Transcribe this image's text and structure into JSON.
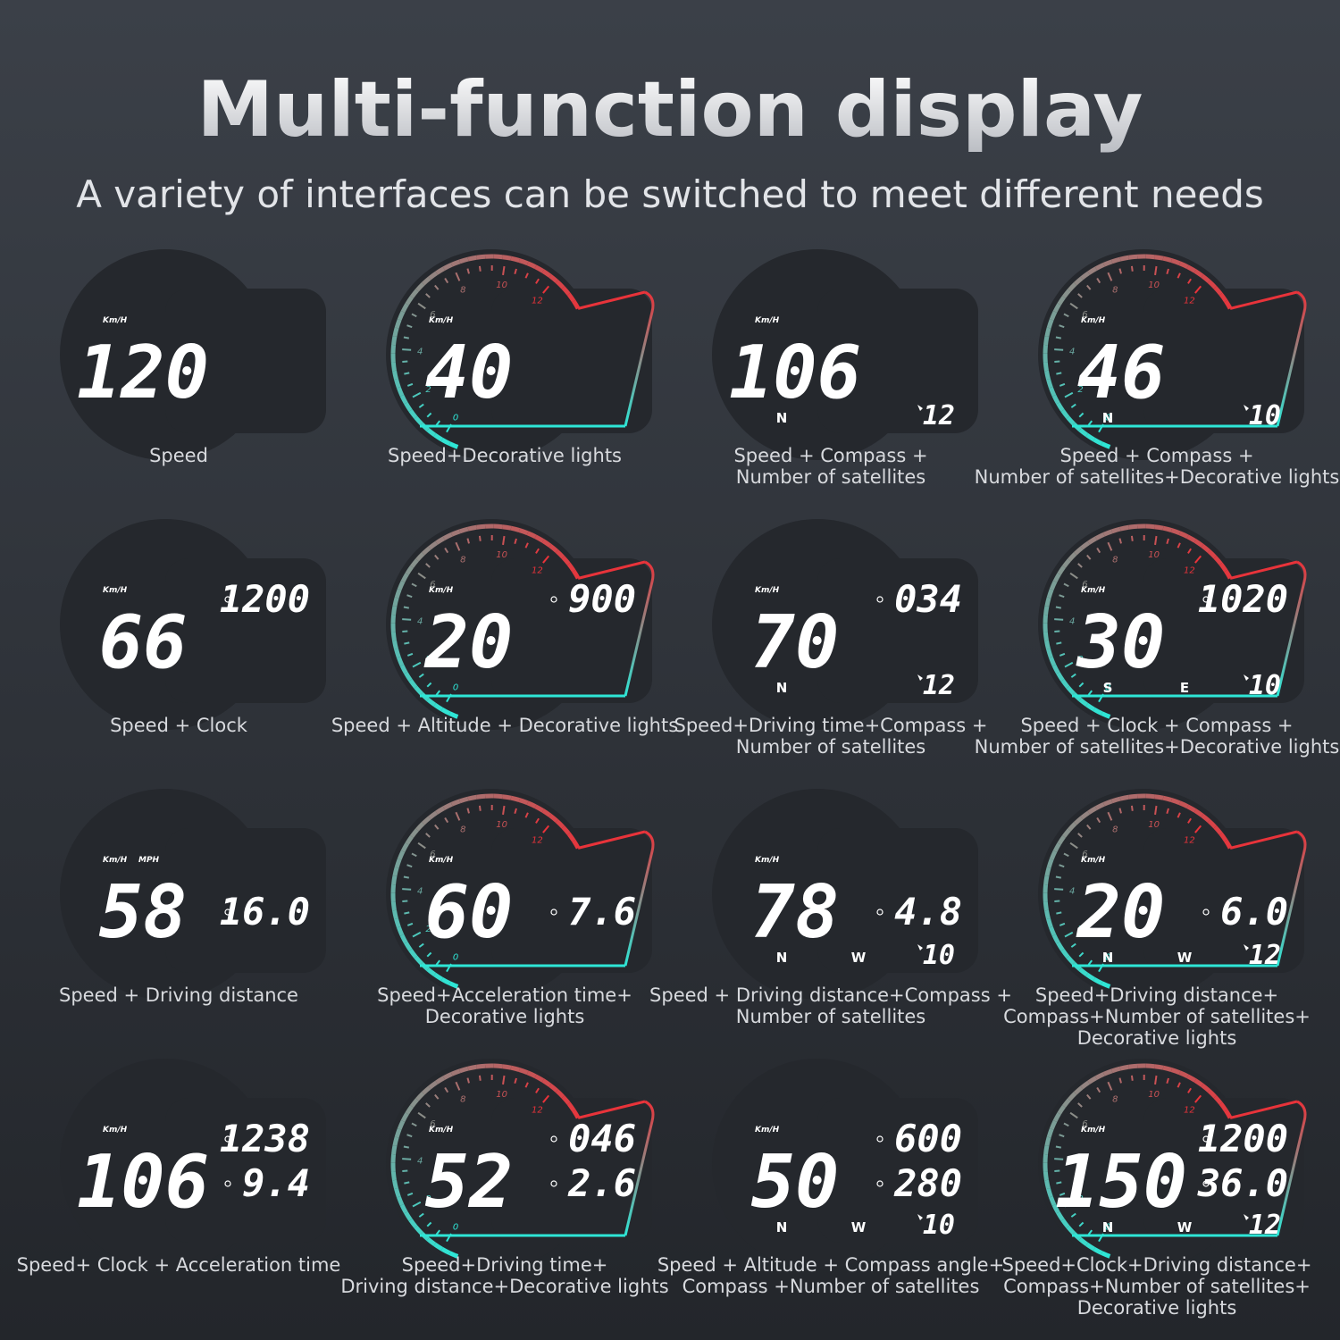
{
  "header": {
    "title": "Multi-function display",
    "subtitle": "A variety of interfaces can be switched to meet different needs"
  },
  "gauge_ticks": [
    "0",
    "2",
    "4",
    "6",
    "8",
    "10",
    "12"
  ],
  "panels": [
    {
      "units": [
        "Km/H"
      ],
      "speed": "120",
      "decorative": false,
      "caption": [
        "Speed"
      ]
    },
    {
      "units": [
        "Km/H"
      ],
      "speed": "40",
      "decorative": true,
      "caption": [
        "Speed+Decorative lights"
      ]
    },
    {
      "units": [
        "Km/H"
      ],
      "speed": "106",
      "decorative": false,
      "compass": [
        "N"
      ],
      "satellites": "12",
      "caption": [
        "Speed + Compass +",
        "Number of satellites"
      ]
    },
    {
      "units": [
        "Km/H"
      ],
      "speed": "46",
      "decorative": true,
      "compass": [
        "N"
      ],
      "satellites": "10",
      "caption": [
        "Speed + Compass +",
        "Number of satellites+Decorative lights"
      ]
    },
    {
      "units": [
        "Km/H"
      ],
      "speed": "66",
      "decorative": false,
      "clock": "1200",
      "caption": [
        "Speed + Clock"
      ]
    },
    {
      "units": [
        "Km/H"
      ],
      "speed": "20",
      "decorative": true,
      "altitude": "900",
      "caption": [
        "Speed + Altitude + Decorative lights"
      ]
    },
    {
      "units": [
        "Km/H"
      ],
      "speed": "70",
      "decorative": false,
      "driving_time": "034",
      "compass": [
        "N"
      ],
      "satellites": "12",
      "caption": [
        "Speed+Driving time+Compass +",
        "Number of satellites"
      ]
    },
    {
      "units": [
        "Km/H"
      ],
      "speed": "30",
      "decorative": true,
      "clock": "1020",
      "compass": [
        "S",
        "E"
      ],
      "satellites": "10",
      "caption": [
        "Speed + Clock + Compass +",
        "Number of satellites+Decorative lights"
      ]
    },
    {
      "units": [
        "Km/H",
        "MPH"
      ],
      "speed": "58",
      "decorative": false,
      "distance": "16.0",
      "caption": [
        "Speed + Driving distance"
      ]
    },
    {
      "units": [
        "Km/H"
      ],
      "speed": "60",
      "decorative": true,
      "acceleration": "7.6",
      "caption": [
        "Speed+Acceleration time+",
        "Decorative lights"
      ]
    },
    {
      "units": [
        "Km/H"
      ],
      "speed": "78",
      "decorative": false,
      "distance": "4.8",
      "compass": [
        "N",
        "W"
      ],
      "satellites": "10",
      "caption": [
        "Speed + Driving distance+Compass +",
        "Number of satellites"
      ]
    },
    {
      "units": [
        "Km/H"
      ],
      "speed": "20",
      "decorative": true,
      "distance": "6.0",
      "compass": [
        "N",
        "W"
      ],
      "satellites": "12",
      "caption": [
        "Speed+Driving distance+",
        "Compass+Number of satellites+",
        "Decorative lights"
      ]
    },
    {
      "units": [
        "Km/H"
      ],
      "speed": "106",
      "decorative": false,
      "clock": "1238",
      "acceleration": "9.4",
      "caption": [
        "Speed+ Clock + Acceleration time"
      ]
    },
    {
      "units": [
        "Km/H"
      ],
      "speed": "52",
      "decorative": true,
      "driving_time": "046",
      "distance": "2.6",
      "caption": [
        "Speed+Driving time+",
        "Driving distance+Decorative lights"
      ]
    },
    {
      "units": [
        "Km/H"
      ],
      "speed": "50",
      "decorative": false,
      "altitude": "600",
      "compass_angle": "280",
      "compass": [
        "N",
        "W"
      ],
      "satellites": "10",
      "caption": [
        "Speed + Altitude + Compass angle+",
        "Compass +Number of satellites"
      ]
    },
    {
      "units": [
        "Km/H"
      ],
      "speed": "150",
      "decorative": true,
      "clock": "1200",
      "distance": "36.0",
      "compass": [
        "N",
        "W"
      ],
      "satellites": "12",
      "caption": [
        "Speed+Clock+Driving distance+",
        "Compass+Number of satellites+",
        "Decorative lights"
      ]
    }
  ]
}
